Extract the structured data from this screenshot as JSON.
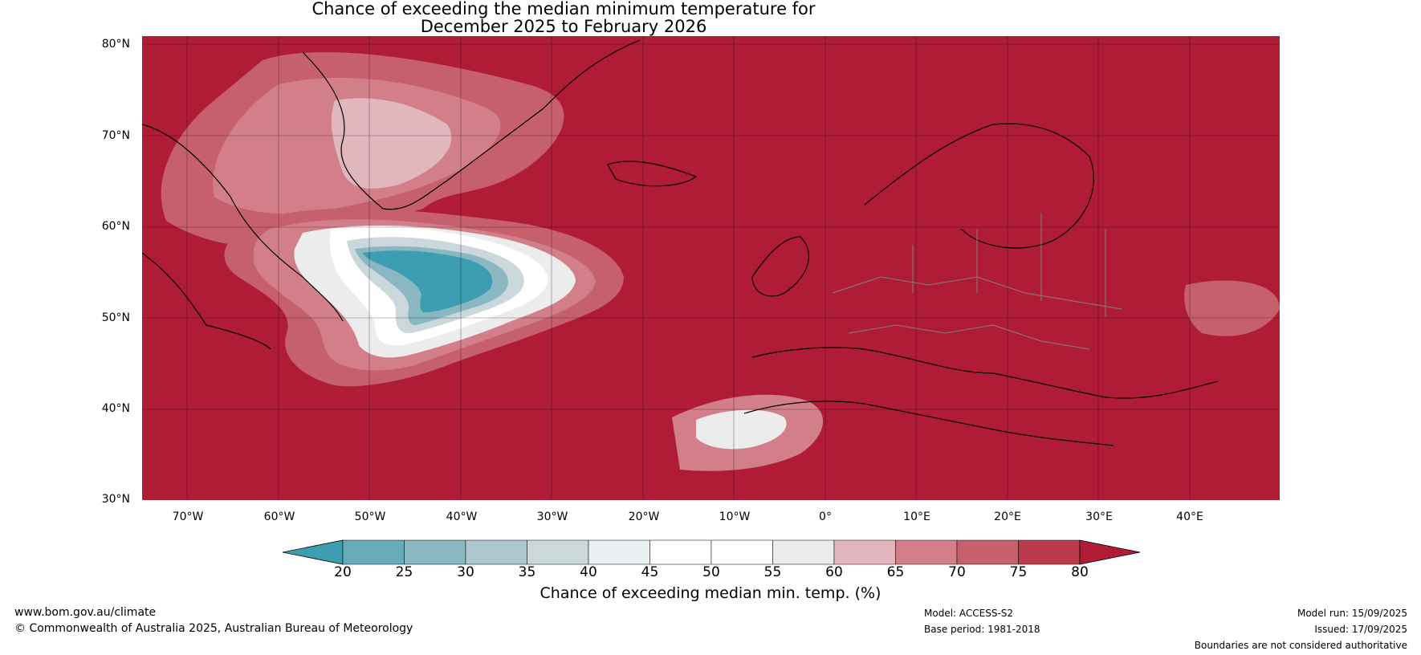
{
  "title": {
    "line1": "Chance of exceeding the median minimum temperature for",
    "line2": "December 2025 to February 2026"
  },
  "map": {
    "latitude_labels": [
      "80°N",
      "70°N",
      "60°N",
      "50°N",
      "40°N",
      "30°N"
    ],
    "longitude_labels": [
      "70°W",
      "60°W",
      "50°W",
      "40°W",
      "30°W",
      "20°W",
      "10°W",
      "0°",
      "10°E",
      "20°E",
      "30°E",
      "40°E"
    ],
    "colors": {
      "land_ocean_high": "#b01c36",
      "coastline": "#000000",
      "borders": "#808080"
    }
  },
  "colorbar": {
    "ticks": [
      "20",
      "25",
      "30",
      "35",
      "40",
      "45",
      "50",
      "55",
      "60",
      "65",
      "70",
      "75",
      "80"
    ],
    "colors": [
      "#3d9db1",
      "#66abb8",
      "#89b7c2",
      "#acc8ce",
      "#cad8dc",
      "#e9f0f1",
      "#ffffff",
      "#ffffff",
      "#ececec",
      "#e1b6bd",
      "#d27f8a",
      "#c6606d",
      "#bb3b4c",
      "#b01c36"
    ],
    "label": "Chance of exceeding median min. temp. (%)"
  },
  "footer": {
    "website": "www.bom.gov.au/climate",
    "copyright": "© Commonwealth of Australia 2025, Australian Bureau of Meteorology",
    "model": "Model: ACCESS-S2",
    "base_period": "Base period: 1981-2018",
    "model_run": "Model run: 15/09/2025",
    "issued": "Issued: 17/09/2025",
    "disclaimer": "Boundaries are not considered authoritative"
  }
}
